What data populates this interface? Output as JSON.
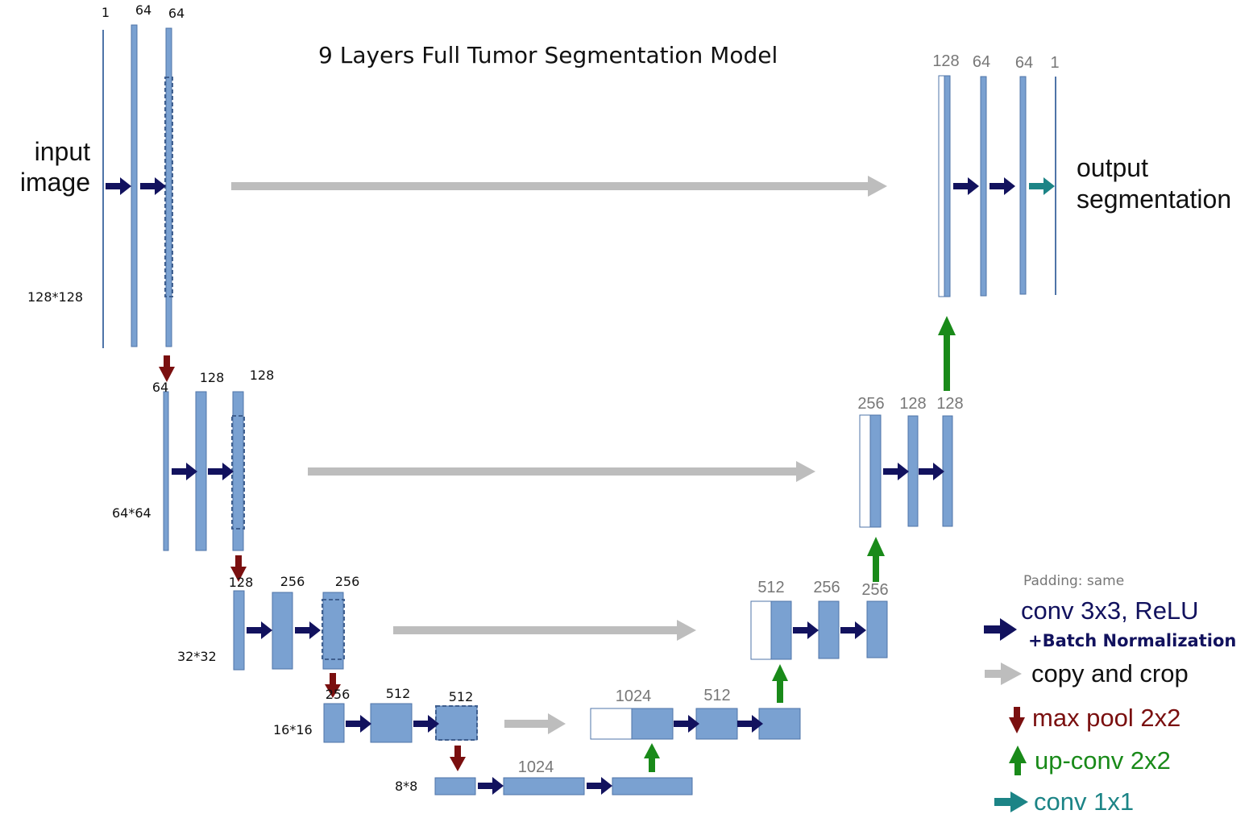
{
  "title": "9 Layers Full Tumor Segmentation Model",
  "input_label": [
    "input",
    "image"
  ],
  "output_label": [
    "output",
    "segmentation"
  ],
  "colors": {
    "block": "#7aa1d1",
    "block_border": "#4f74a8",
    "conv_arrow": "#12125e",
    "copy_arrow": "#bdbdbd",
    "pool_arrow": "#7a0f0f",
    "upconv_arrow": "#198a19",
    "conv1x1_arrow": "#1c8486"
  },
  "encoder": {
    "level1": {
      "channels": [
        "1",
        "64",
        "64"
      ],
      "size": "128*128"
    },
    "level2": {
      "channels": [
        "64",
        "128",
        "128"
      ],
      "size": "64*64"
    },
    "level3": {
      "channels": [
        "128",
        "256",
        "256"
      ],
      "size": "32*32"
    },
    "level4": {
      "channels": [
        "256",
        "512",
        "512"
      ],
      "size": "16*16"
    },
    "bottom": {
      "channels": [
        "1024"
      ],
      "size": "8*8"
    }
  },
  "decoder": {
    "level4": {
      "channels": [
        "1024",
        "512"
      ]
    },
    "level3": {
      "channels": [
        "512",
        "256",
        "256"
      ]
    },
    "level2": {
      "channels": [
        "256",
        "128",
        "128"
      ]
    },
    "level1": {
      "channels": [
        "128",
        "64",
        "64",
        "1"
      ]
    }
  },
  "legend": {
    "padding": "Padding: same",
    "conv": "conv 3x3, ReLU",
    "conv_sub": "+Batch Normalization",
    "copy": "copy and crop",
    "pool": "max pool 2x2",
    "upconv": "up-conv 2x2",
    "conv1x1": "conv 1x1"
  }
}
